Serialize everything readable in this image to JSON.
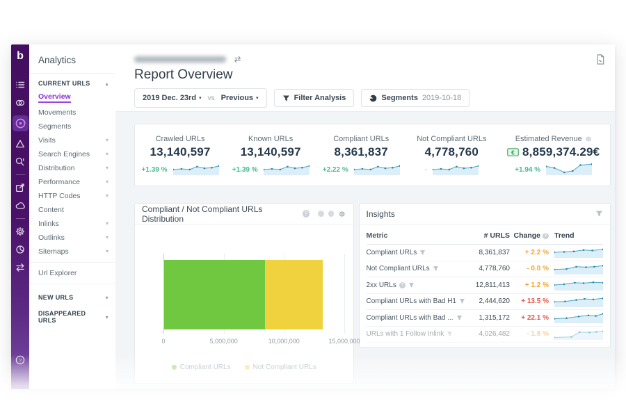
{
  "icon_rail": {
    "logo": "b",
    "icons": [
      {
        "name": "list-menu-icon",
        "icon": "list"
      },
      {
        "name": "crawl-icon",
        "icon": "crawl"
      },
      {
        "name": "analytics-icon",
        "icon": "analytics",
        "active": true
      },
      {
        "name": "prism-icon",
        "icon": "prism"
      },
      {
        "name": "search-icon",
        "icon": "search"
      },
      {
        "divider": true
      },
      {
        "name": "export-icon",
        "icon": "export"
      },
      {
        "name": "cloud-icon",
        "icon": "cloud"
      },
      {
        "divider": true
      },
      {
        "name": "gear-icon",
        "icon": "gear"
      },
      {
        "name": "pie-chart-icon",
        "icon": "pie"
      },
      {
        "name": "swap-icon",
        "icon": "swap"
      }
    ]
  },
  "sidebar": {
    "title": "Analytics",
    "current_urls_header": "CURRENT URLS",
    "items": [
      {
        "label": "Overview",
        "active": true
      },
      {
        "label": "Movements"
      },
      {
        "label": "Segments"
      },
      {
        "label": "Visits",
        "chevron": true
      },
      {
        "label": "Search Engines",
        "chevron": true
      },
      {
        "label": "Distribution",
        "chevron": true
      },
      {
        "label": "Performance",
        "chevron": true
      },
      {
        "label": "HTTP Codes",
        "chevron": true
      },
      {
        "label": "Content"
      },
      {
        "label": "Inlinks",
        "chevron": true
      },
      {
        "label": "Outlinks",
        "chevron": true
      },
      {
        "label": "Sitemaps",
        "chevron": true
      }
    ],
    "url_explorer": "Url Explorer",
    "new_urls": "NEW URLS",
    "disappeared_urls": "DISAPPEARED URLS"
  },
  "header": {
    "page_title": "Report Overview",
    "date_value": "2019 Dec. 23rd",
    "vs": "vs",
    "compare_value": "Previous",
    "filter_label": "Filter Analysis",
    "segments_label": "Segments",
    "segments_date": "2019-10-18"
  },
  "kpis": [
    {
      "label": "Crawled URLs",
      "value": "13,140,597",
      "change": "+1.39 %",
      "change_color": "#3fbd8c",
      "trend": "flat"
    },
    {
      "label": "Known URLs",
      "value": "13,140,597",
      "change": "+1.39 %",
      "change_color": "#3fbd8c",
      "trend": "flat"
    },
    {
      "label": "Compliant URLs",
      "value": "8,361,837",
      "change": "+2.22 %",
      "change_color": "#3fbd8c",
      "trend": "flat"
    },
    {
      "label": "Not Compliant URLs",
      "value": "4,778,760",
      "change": "-",
      "change_color": "#c3cad0",
      "trend": "flat"
    },
    {
      "label": "Estimated Revenue",
      "value": "8,859,374.29€",
      "change": "+1.94 %",
      "change_color": "#3fbd8c",
      "trend": "dip",
      "gear": true,
      "money_icon": true,
      "wide": true
    }
  ],
  "chart_panel": {
    "title": "Compliant / Not Compliant URLs Distribution"
  },
  "chart_data": {
    "type": "bar",
    "orientation": "horizontal",
    "stacked": true,
    "title": "Compliant / Not Compliant URLs Distribution",
    "series": [
      {
        "name": "Compliant URLs",
        "value": 8361837,
        "color": "#70c840"
      },
      {
        "name": "Not Compliant URLs",
        "value": 4778760,
        "color": "#f0d23e"
      }
    ],
    "total": 13140597,
    "x_ticks": [
      "0",
      "5,000,000",
      "10,000,000",
      "15,000,000"
    ],
    "x_tick_values": [
      0,
      5000000,
      10000000,
      15000000
    ],
    "xlim": [
      0,
      15800000
    ],
    "grid": true,
    "legend_position": "bottom"
  },
  "insights": {
    "title": "Insights",
    "columns": [
      "Metric",
      "# URLS",
      "Change",
      "Trend"
    ],
    "rows": [
      {
        "metric": "Compliant URLs",
        "urls": "8,361,837",
        "change": "+ 2.2 %",
        "severity": "warn"
      },
      {
        "metric": "Not Compliant URLs",
        "urls": "4,778,760",
        "change": "- 0.0 %",
        "severity": "warn"
      },
      {
        "metric": "2xx URLs",
        "urls": "12,811,413",
        "change": "+ 1.2 %",
        "severity": "warn",
        "info": true
      },
      {
        "metric": "Compliant URLs with Bad H1",
        "urls": "2,444,620",
        "change": "+ 13.5 %",
        "severity": "bad"
      },
      {
        "metric": "Compliant URLs with Bad ...",
        "urls": "1,315,172",
        "change": "+ 22.1 %",
        "severity": "bad"
      },
      {
        "metric": "URLs with 1 Follow Inlink",
        "urls": "4,026,482",
        "change": "- 1.8 %",
        "severity": "warn",
        "faded": true
      }
    ]
  },
  "colors": {
    "accent_purple": "#8b2fd0",
    "positive_green": "#3fbd8c",
    "warn_orange": "#f0a32f",
    "bad_red": "#e2574c",
    "spark_line": "#4aa8c4",
    "spark_fill": "#dceef8",
    "bar_green": "#70c840",
    "bar_yellow": "#f0d23e"
  }
}
